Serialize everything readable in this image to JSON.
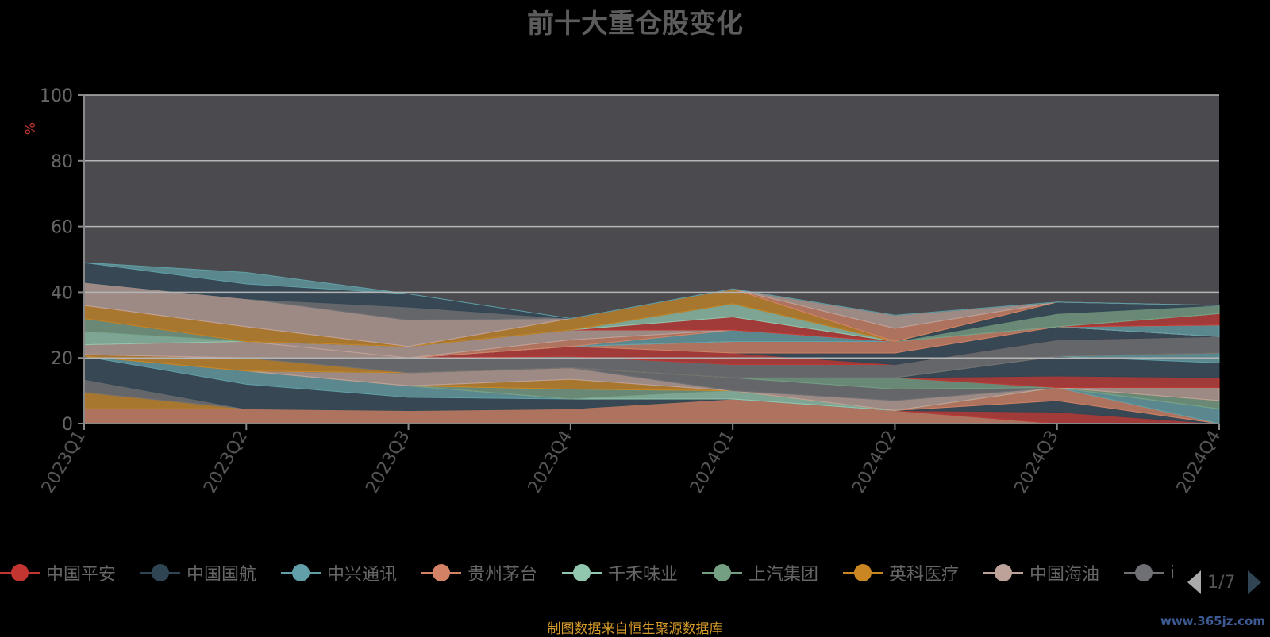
{
  "title": "前十大重仓股变化",
  "source_note": "制图数据来自恒生聚源数据库",
  "watermark": "www.365jz.com",
  "pager": {
    "text": "1/7"
  },
  "legend": [
    {
      "name": "中国平安",
      "color": "#c23531"
    },
    {
      "name": "中国国航",
      "color": "#2f4554"
    },
    {
      "name": "中兴通讯",
      "color": "#61a0a8"
    },
    {
      "name": "贵州茅台",
      "color": "#d48265"
    },
    {
      "name": "千禾味业",
      "color": "#91c7ae"
    },
    {
      "name": "上汽集团",
      "color": "#749f83"
    },
    {
      "name": "英科医疗",
      "color": "#ca8622"
    },
    {
      "name": "中国海油",
      "color": "#bda29a"
    },
    {
      "name": "i",
      "color": "#6e7074"
    }
  ],
  "chart_data": {
    "type": "area",
    "stacked": true,
    "title": "前十大重仓股变化",
    "ylabel": "%",
    "ylim": [
      0,
      100
    ],
    "yticks": [
      0,
      20,
      40,
      60,
      80,
      100
    ],
    "categories": [
      "2023Q1",
      "2023Q2",
      "2023Q3",
      "2023Q4",
      "2024Q1",
      "2024Q2",
      "2024Q3",
      "2024Q4"
    ],
    "grid": true,
    "background": "#4b4b4f",
    "series": [
      {
        "color": "#d48265",
        "values": [
          4.5,
          4.5,
          4.0,
          4.5,
          7.5,
          4.0,
          0,
          0
        ]
      },
      {
        "color": "#ca8622",
        "values": [
          5.0,
          0,
          0,
          0,
          0,
          0,
          0,
          0
        ]
      },
      {
        "color": "#6e7074",
        "values": [
          4.0,
          0,
          0,
          0,
          0,
          0,
          0,
          0
        ]
      },
      {
        "color": "#2f4554",
        "values": [
          7.0,
          7.5,
          4.0,
          3.0,
          0,
          0,
          0,
          0
        ]
      },
      {
        "color": "#61a0a8",
        "values": [
          0,
          4.0,
          3.5,
          0,
          0,
          0,
          0,
          0
        ]
      },
      {
        "color": "#c23531",
        "values": [
          0,
          0,
          0,
          0,
          0,
          0,
          3.5,
          0
        ]
      },
      {
        "color": "#2f4554",
        "values": [
          0,
          0,
          0,
          0,
          0,
          0,
          3.5,
          0
        ]
      },
      {
        "color": "#d48265",
        "values": [
          0,
          0,
          0,
          0,
          0,
          0,
          4.0,
          0
        ]
      },
      {
        "color": "#61a0a8",
        "values": [
          0,
          0,
          0,
          0,
          0,
          0,
          0,
          4.5
        ]
      },
      {
        "color": "#91c7ae",
        "values": [
          0,
          0,
          0,
          0,
          2.5,
          0,
          0,
          0
        ]
      },
      {
        "color": "#749f83",
        "values": [
          0,
          0,
          0,
          3.0,
          0,
          0,
          0,
          2.5
        ]
      },
      {
        "color": "#ca8622",
        "values": [
          0,
          0,
          0,
          3.0,
          0,
          0,
          0,
          0
        ]
      },
      {
        "color": "#bda29a",
        "values": [
          0,
          0,
          4.0,
          3.5,
          0,
          3.0,
          0,
          4.0
        ]
      },
      {
        "color": "#6e7074",
        "values": [
          0,
          0,
          0,
          0,
          4.0,
          3.5,
          0,
          0
        ]
      },
      {
        "color": "#749f83",
        "values": [
          0,
          0,
          0,
          0,
          0,
          3.5,
          0,
          0
        ]
      },
      {
        "color": "#c23531",
        "values": [
          0,
          0,
          0,
          0,
          0,
          0,
          3.5,
          3.0
        ]
      },
      {
        "color": "#2f4554",
        "values": [
          0,
          0,
          0,
          0,
          0,
          0,
          6.0,
          4.5
        ]
      },
      {
        "color": "#61a0a8",
        "values": [
          0,
          0,
          0,
          0,
          0,
          0,
          0,
          3.0
        ]
      },
      {
        "color": "#ca8622",
        "values": [
          0.5,
          4.0,
          0,
          0,
          0,
          0,
          0,
          0
        ]
      },
      {
        "color": "#6e7074",
        "values": [
          0,
          0,
          4.5,
          3.5,
          4.0,
          4.0,
          5.0,
          5.0
        ]
      },
      {
        "color": "#c23531",
        "values": [
          0,
          0,
          0,
          3.0,
          3.5,
          0,
          0,
          0
        ]
      },
      {
        "color": "#2f4554",
        "values": [
          0,
          0,
          0,
          0,
          0,
          3.5,
          4.0,
          0
        ]
      },
      {
        "color": "#d48265",
        "values": [
          0,
          0,
          0,
          0,
          3.5,
          3.5,
          0,
          0
        ]
      },
      {
        "color": "#bda29a",
        "values": [
          3.0,
          5.0,
          0,
          0,
          0,
          0,
          0,
          0
        ]
      },
      {
        "color": "#61a0a8",
        "values": [
          0,
          0,
          0,
          0,
          3.5,
          0,
          0,
          3.5
        ]
      },
      {
        "color": "#d48265",
        "values": [
          0,
          0,
          0,
          2.0,
          0,
          0,
          0,
          0
        ]
      },
      {
        "color": "#bda29a",
        "values": [
          0,
          0,
          3.5,
          3.0,
          0,
          0,
          0,
          0
        ]
      },
      {
        "color": "#c23531",
        "values": [
          0,
          0,
          0,
          0,
          4.0,
          0,
          0,
          3.5
        ]
      },
      {
        "color": "#91c7ae",
        "values": [
          4.0,
          0,
          0,
          0,
          4.0,
          0,
          0,
          0
        ]
      },
      {
        "color": "#749f83",
        "values": [
          4.0,
          0,
          0,
          0,
          0,
          0,
          4.0,
          2.5
        ]
      },
      {
        "color": "#2f4554",
        "values": [
          0,
          0,
          0,
          0,
          0,
          0,
          3.5,
          0
        ]
      },
      {
        "color": "#ca8622",
        "values": [
          4.0,
          4.5,
          0,
          3.5,
          4.5,
          0,
          0,
          0
        ]
      },
      {
        "color": "#d48265",
        "values": [
          0,
          0,
          0,
          0,
          0,
          4.0,
          0,
          0
        ]
      },
      {
        "color": "#bda29a",
        "values": [
          7.0,
          8.5,
          8.0,
          0,
          0,
          4.0,
          0,
          0
        ]
      },
      {
        "color": "#6e7074",
        "values": [
          0,
          0,
          4.0,
          0,
          0,
          0,
          0,
          0
        ]
      },
      {
        "color": "#2f4554",
        "values": [
          6.0,
          4.5,
          4.0,
          0,
          0,
          0,
          0,
          0
        ]
      },
      {
        "color": "#61a0a8",
        "values": [
          0,
          3.5,
          0,
          0,
          0,
          0,
          0,
          0
        ]
      }
    ]
  }
}
